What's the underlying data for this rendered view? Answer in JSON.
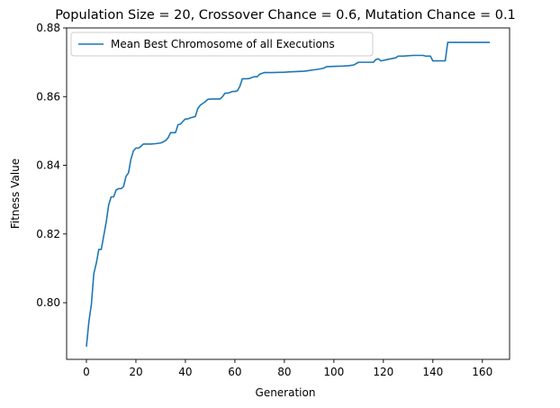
{
  "chart_data": {
    "type": "line",
    "title": "Population Size = 20, Crossover Chance = 0.6, Mutation Chance = 0.1",
    "xlabel": "Generation",
    "ylabel": "Fitness Value",
    "xlim": [
      -8,
      171
    ],
    "ylim": [
      0.7835,
      0.88
    ],
    "xticks": [
      0,
      20,
      40,
      60,
      80,
      100,
      120,
      140,
      160
    ],
    "xtick_labels": [
      "0",
      "20",
      "40",
      "60",
      "80",
      "100",
      "120",
      "140",
      "160"
    ],
    "yticks": [
      0.8,
      0.82,
      0.84,
      0.86,
      0.88
    ],
    "ytick_labels": [
      "0.80",
      "0.82",
      "0.84",
      "0.86",
      "0.88"
    ],
    "grid": false,
    "legend_position": "top-left",
    "series": [
      {
        "name": "Mean Best Chromosome of all Executions",
        "color": "#1f77b4",
        "points": [
          [
            0,
            0.7872
          ],
          [
            1,
            0.7945
          ],
          [
            2,
            0.7995
          ],
          [
            3,
            0.8085
          ],
          [
            4,
            0.8115
          ],
          [
            5,
            0.8155
          ],
          [
            6,
            0.8155
          ],
          [
            7,
            0.8195
          ],
          [
            8,
            0.8235
          ],
          [
            9,
            0.8285
          ],
          [
            10,
            0.8308
          ],
          [
            11,
            0.8308
          ],
          [
            12,
            0.8328
          ],
          [
            13,
            0.8332
          ],
          [
            14,
            0.8332
          ],
          [
            15,
            0.8338
          ],
          [
            16,
            0.8368
          ],
          [
            17,
            0.8378
          ],
          [
            18,
            0.8418
          ],
          [
            19,
            0.8442
          ],
          [
            20,
            0.845
          ],
          [
            21,
            0.845
          ],
          [
            22,
            0.8455
          ],
          [
            23,
            0.8462
          ],
          [
            24,
            0.8462
          ],
          [
            26,
            0.8462
          ],
          [
            28,
            0.8463
          ],
          [
            29,
            0.8464
          ],
          [
            30,
            0.8465
          ],
          [
            31,
            0.8468
          ],
          [
            32,
            0.8472
          ],
          [
            33,
            0.848
          ],
          [
            34,
            0.8495
          ],
          [
            35,
            0.8495
          ],
          [
            36,
            0.8495
          ],
          [
            37,
            0.8518
          ],
          [
            38,
            0.852
          ],
          [
            39,
            0.8528
          ],
          [
            40,
            0.8535
          ],
          [
            41,
            0.8535
          ],
          [
            42,
            0.8538
          ],
          [
            43,
            0.854
          ],
          [
            44,
            0.8542
          ],
          [
            45,
            0.8565
          ],
          [
            46,
            0.8575
          ],
          [
            47,
            0.858
          ],
          [
            48,
            0.8585
          ],
          [
            49,
            0.8592
          ],
          [
            50,
            0.8593
          ],
          [
            52,
            0.8593
          ],
          [
            54,
            0.8593
          ],
          [
            55,
            0.86
          ],
          [
            56,
            0.861
          ],
          [
            57,
            0.861
          ],
          [
            58,
            0.8612
          ],
          [
            59,
            0.8615
          ],
          [
            60,
            0.8615
          ],
          [
            61,
            0.8617
          ],
          [
            62,
            0.863
          ],
          [
            63,
            0.8652
          ],
          [
            65,
            0.8652
          ],
          [
            66,
            0.8653
          ],
          [
            67,
            0.8656
          ],
          [
            68,
            0.8658
          ],
          [
            69,
            0.8658
          ],
          [
            70,
            0.8665
          ],
          [
            71,
            0.8668
          ],
          [
            72,
            0.867
          ],
          [
            75,
            0.867
          ],
          [
            80,
            0.8671
          ],
          [
            82,
            0.8672
          ],
          [
            85,
            0.8673
          ],
          [
            88,
            0.8674
          ],
          [
            90,
            0.8676
          ],
          [
            92,
            0.8678
          ],
          [
            94,
            0.868
          ],
          [
            96,
            0.8683
          ],
          [
            97,
            0.8687
          ],
          [
            100,
            0.8688
          ],
          [
            104,
            0.8689
          ],
          [
            106,
            0.869
          ],
          [
            108,
            0.8692
          ],
          [
            110,
            0.87
          ],
          [
            116,
            0.87
          ],
          [
            117,
            0.8708
          ],
          [
            118,
            0.871
          ],
          [
            119,
            0.8704
          ],
          [
            121,
            0.8707
          ],
          [
            123,
            0.871
          ],
          [
            125,
            0.8713
          ],
          [
            126,
            0.8718
          ],
          [
            128,
            0.8718
          ],
          [
            132,
            0.872
          ],
          [
            136,
            0.872
          ],
          [
            137,
            0.8718
          ],
          [
            138,
            0.8718
          ],
          [
            139,
            0.8718
          ],
          [
            140,
            0.8704
          ],
          [
            142,
            0.8704
          ],
          [
            145,
            0.8704
          ],
          [
            146,
            0.8758
          ],
          [
            163,
            0.8758
          ]
        ]
      }
    ]
  }
}
